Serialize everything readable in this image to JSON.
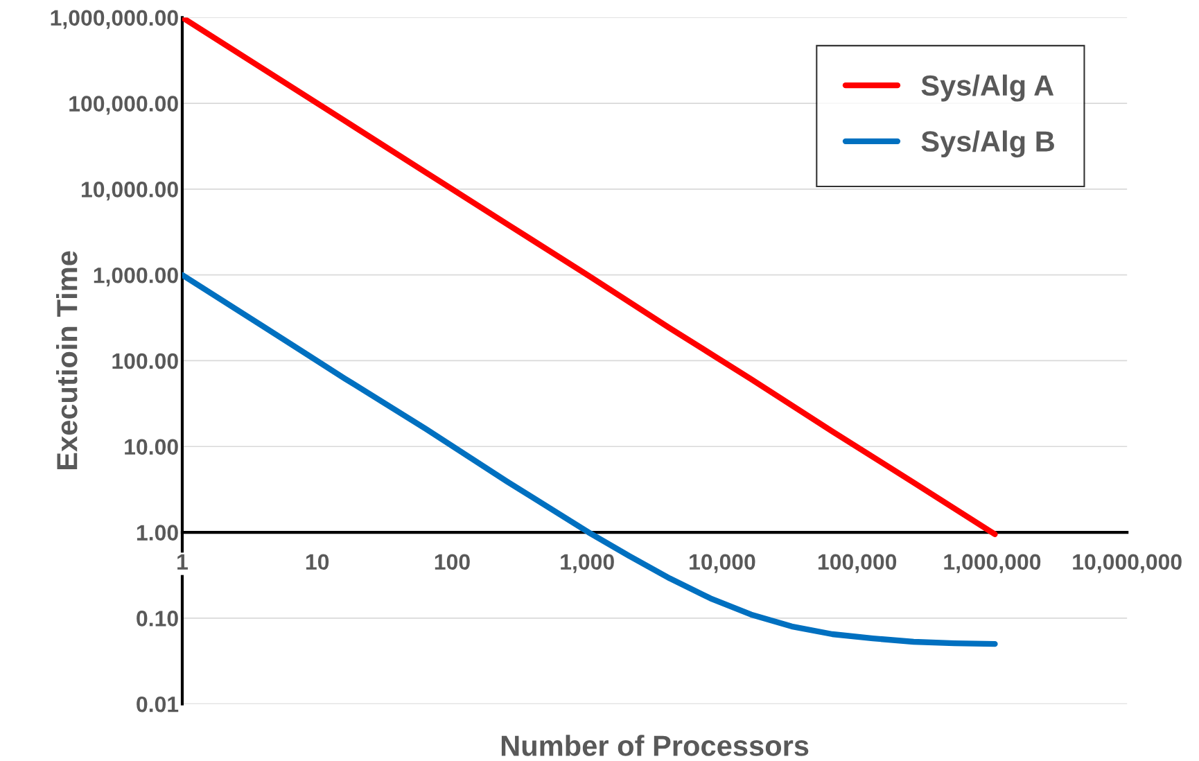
{
  "chart_data": {
    "type": "line",
    "xlabel": "Number of Processors",
    "ylabel": "Executioin Time",
    "log": "xy",
    "series": [
      {
        "name": "Sys/Alg A",
        "color": "#ff0000",
        "x": [
          1,
          4,
          16,
          64,
          256,
          1024,
          4096,
          16384,
          65536,
          262144,
          1048576
        ],
        "values": [
          1000000,
          250000,
          62500,
          15600,
          3900,
          980,
          240,
          61,
          15,
          3.8,
          0.95
        ]
      },
      {
        "name": "Sys/Alg B",
        "color": "#0070c0",
        "x": [
          1,
          4,
          16,
          64,
          256,
          1024,
          2048,
          4096,
          8192,
          16384,
          32768,
          65536,
          131072,
          262144,
          524288,
          1048576
        ],
        "values": [
          1000,
          250,
          62,
          16,
          3.9,
          1.0,
          0.53,
          0.29,
          0.17,
          0.11,
          0.08,
          0.065,
          0.058,
          0.053,
          0.051,
          0.05
        ]
      }
    ],
    "xlim": [
      1,
      10000000
    ],
    "ylim": [
      0.01,
      1000000
    ],
    "xticks": [
      {
        "value": 1,
        "label": "1"
      },
      {
        "value": 10,
        "label": "10"
      },
      {
        "value": 100,
        "label": "100"
      },
      {
        "value": 1000,
        "label": "1,000"
      },
      {
        "value": 10000,
        "label": "10,000"
      },
      {
        "value": 100000,
        "label": "100,000"
      },
      {
        "value": 1000000,
        "label": "1,000,000"
      },
      {
        "value": 10000000,
        "label": "10,000,000"
      }
    ],
    "yticks": [
      {
        "value": 0.01,
        "label": "0.01"
      },
      {
        "value": 0.1,
        "label": "0.10"
      },
      {
        "value": 1,
        "label": "1.00"
      },
      {
        "value": 10,
        "label": "10.00"
      },
      {
        "value": 100,
        "label": "100.00"
      },
      {
        "value": 1000,
        "label": "1,000.00"
      },
      {
        "value": 10000,
        "label": "10,000.00"
      },
      {
        "value": 100000,
        "label": "100,000.00"
      },
      {
        "value": 1000000,
        "label": "1,000,000.00"
      }
    ],
    "grid": "y",
    "legend": "top right",
    "line_style": "solid",
    "marker": "none"
  }
}
